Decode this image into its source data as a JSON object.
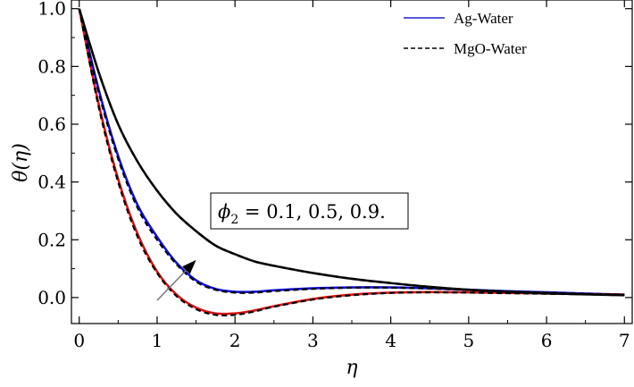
{
  "chart_data": {
    "type": "line",
    "xlabel": "η",
    "ylabel": "θ(η)",
    "xlim": [
      -0.1,
      7.1
    ],
    "ylim": [
      -0.09,
      1.03
    ],
    "x_ticks": [
      "0",
      "1",
      "2",
      "3",
      "4",
      "5",
      "6",
      "7"
    ],
    "y_ticks": [
      "0.0",
      "0.2",
      "0.4",
      "0.6",
      "0.8",
      "1.0"
    ],
    "grid": false,
    "legend_position": "top-right",
    "legend": [
      {
        "label": "Ag-Water",
        "style": "solid"
      },
      {
        "label": "MgO-Water",
        "style": "dashed"
      }
    ],
    "annotation": {
      "text_parts": [
        "ϕ",
        "2",
        " = 0.1, 0.5, 0.9."
      ],
      "arrow_from": [
        1.0,
        -0.01
      ],
      "arrow_to": [
        1.5,
        0.13
      ]
    },
    "x": [
      0,
      0.25,
      0.5,
      0.75,
      1.0,
      1.25,
      1.5,
      1.75,
      2.0,
      2.25,
      2.5,
      3.0,
      3.5,
      4.0,
      4.5,
      5.0,
      5.5,
      6.0,
      6.5,
      7.0
    ],
    "series": [
      {
        "group": "phi2=0.1",
        "fluid": "Ag-Water",
        "style": "solid",
        "color": "#1010e0",
        "values": [
          1.0,
          0.72,
          0.49,
          0.32,
          0.21,
          0.12,
          0.06,
          0.03,
          0.02,
          0.02,
          0.025,
          0.032,
          0.035,
          0.035,
          0.032,
          0.027,
          0.022,
          0.018,
          0.014,
          0.01
        ]
      },
      {
        "group": "phi2=0.1",
        "fluid": "MgO-Water",
        "style": "dashed",
        "color": "#000000",
        "values": [
          1.0,
          0.71,
          0.48,
          0.31,
          0.2,
          0.115,
          0.055,
          0.027,
          0.017,
          0.017,
          0.022,
          0.03,
          0.034,
          0.034,
          0.031,
          0.026,
          0.021,
          0.017,
          0.013,
          0.01
        ]
      },
      {
        "group": "phi2=0.5",
        "fluid": "Ag-Water",
        "style": "solid",
        "color": "#e01010",
        "values": [
          1.0,
          0.67,
          0.41,
          0.22,
          0.09,
          0.01,
          -0.035,
          -0.055,
          -0.055,
          -0.045,
          -0.03,
          -0.005,
          0.01,
          0.017,
          0.019,
          0.018,
          0.016,
          0.014,
          0.012,
          0.01
        ]
      },
      {
        "group": "phi2=0.5",
        "fluid": "MgO-Water",
        "style": "dashed",
        "color": "#000000",
        "values": [
          1.0,
          0.66,
          0.4,
          0.21,
          0.085,
          0.005,
          -0.04,
          -0.06,
          -0.06,
          -0.048,
          -0.032,
          -0.007,
          0.008,
          0.016,
          0.018,
          0.017,
          0.015,
          0.013,
          0.011,
          0.01
        ]
      },
      {
        "group": "phi2=0.9",
        "fluid": "Ag-Water",
        "style": "solid",
        "color": "#101010",
        "values": [
          1.0,
          0.78,
          0.6,
          0.47,
          0.37,
          0.29,
          0.23,
          0.18,
          0.15,
          0.125,
          0.11,
          0.085,
          0.065,
          0.05,
          0.037,
          0.027,
          0.02,
          0.015,
          0.011,
          0.008
        ]
      },
      {
        "group": "phi2=0.9",
        "fluid": "MgO-Water",
        "style": "dashed",
        "color": "#000000",
        "values": [
          1.0,
          0.78,
          0.6,
          0.47,
          0.37,
          0.29,
          0.23,
          0.18,
          0.15,
          0.125,
          0.11,
          0.085,
          0.065,
          0.05,
          0.037,
          0.027,
          0.02,
          0.015,
          0.011,
          0.008
        ]
      }
    ]
  }
}
